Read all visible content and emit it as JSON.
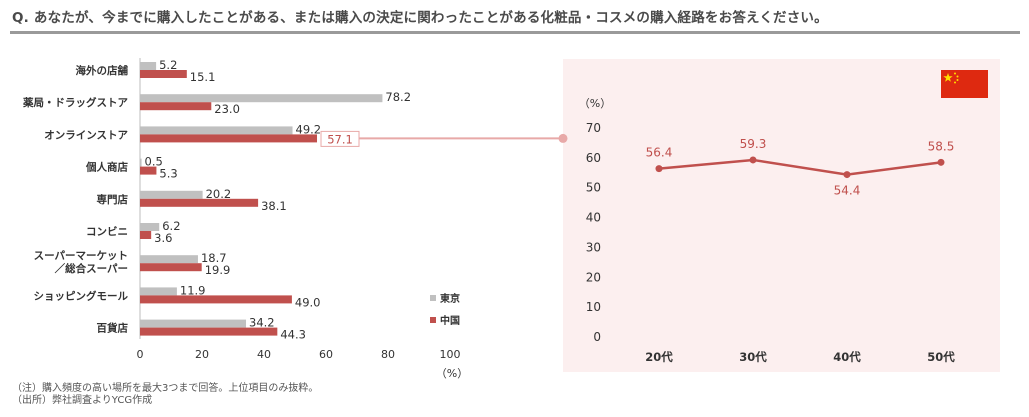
{
  "title": "Q. あなたが、今までに購入したことがある、または購入の決定に関わったことがある化粧品・コスメの購入経路をお答えください。",
  "notes": {
    "note": "（注）購入頻度の高い場所を最大3つまで回答。上位項目のみ抜粋。",
    "source": "（出所）弊社調査よりYCG作成"
  },
  "colors": {
    "tokyo": "#c0c0c0",
    "china": "#c0504d",
    "panel_bg": "#fcefef",
    "connector": "#e8a9a8"
  },
  "chart_data": [
    {
      "type": "bar",
      "orientation": "horizontal",
      "categories": [
        "海外の店舗",
        "薬局・ドラッグストア",
        "オンラインストア",
        "個人商店",
        "専門店",
        "コンビニ",
        "スーパーマーケット／総合スーパー",
        "ショッピングモール",
        "百貨店"
      ],
      "category_lines": [
        [
          "海外の店舗"
        ],
        [
          "薬局・ドラッグストア"
        ],
        [
          "オンラインストア"
        ],
        [
          "個人商店"
        ],
        [
          "専門店"
        ],
        [
          "コンビニ"
        ],
        [
          "スーパーマーケット",
          "／総合スーパー"
        ],
        [
          "ショッピングモール"
        ],
        [
          "百貨店"
        ]
      ],
      "series": [
        {
          "name": "東京",
          "values": [
            5.2,
            78.2,
            49.2,
            0.5,
            20.2,
            6.2,
            18.7,
            11.9,
            34.2
          ]
        },
        {
          "name": "中国",
          "values": [
            15.1,
            23.0,
            57.1,
            5.3,
            38.1,
            3.6,
            19.9,
            49.0,
            44.3
          ]
        }
      ],
      "value_labels": {
        "東京": [
          "5.2",
          "78.2",
          "49.2",
          "0.5",
          "20.2",
          "6.2",
          "18.7",
          "11.9",
          "34.2"
        ],
        "中国": [
          "15.1",
          "23.0",
          "57.1",
          "5.3",
          "38.1",
          "3.6",
          "19.9",
          "49.0",
          "44.3"
        ]
      },
      "xlim": [
        0,
        100
      ],
      "xticks": [
        0,
        20,
        40,
        60,
        80,
        100
      ],
      "unit": "（%）",
      "highlight_category": "オンラインストア",
      "legend": "bottom-right"
    },
    {
      "type": "line",
      "categories": [
        "20代",
        "30代",
        "40代",
        "50代"
      ],
      "series": [
        {
          "name": "中国",
          "values": [
            56.4,
            59.3,
            54.4,
            58.5
          ]
        }
      ],
      "value_labels": [
        "56.4",
        "59.3",
        "54.4",
        "58.5"
      ],
      "ylim": [
        0,
        70
      ],
      "yticks": [
        0,
        10,
        20,
        30,
        40,
        50,
        60,
        70
      ],
      "unit": "（%）",
      "flag": "china-flag"
    }
  ]
}
